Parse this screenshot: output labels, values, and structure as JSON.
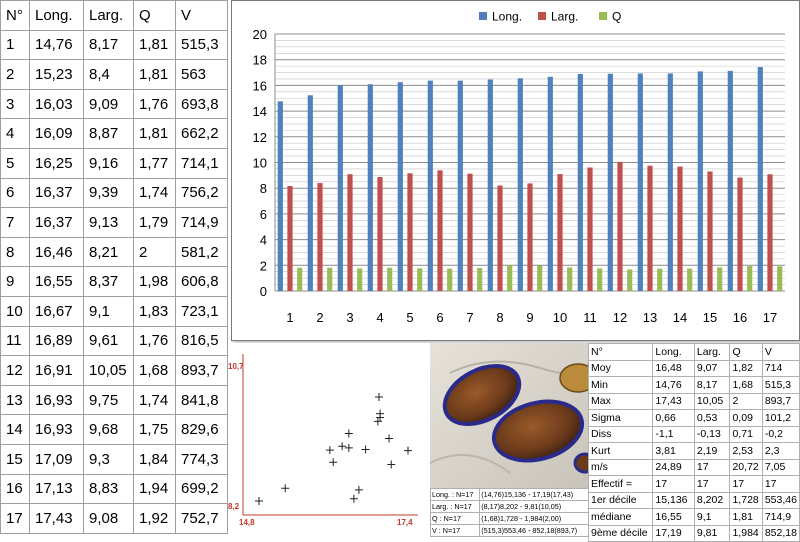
{
  "table": {
    "headers": [
      "N°",
      "Long.",
      "Larg.",
      "Q",
      "V"
    ],
    "rows": [
      [
        "1",
        "14,76",
        "8,17",
        "1,81",
        "515,3"
      ],
      [
        "2",
        "15,23",
        "8,4",
        "1,81",
        "563"
      ],
      [
        "3",
        "16,03",
        "9,09",
        "1,76",
        "693,8"
      ],
      [
        "4",
        "16,09",
        "8,87",
        "1,81",
        "662,2"
      ],
      [
        "5",
        "16,25",
        "9,16",
        "1,77",
        "714,1"
      ],
      [
        "6",
        "16,37",
        "9,39",
        "1,74",
        "756,2"
      ],
      [
        "7",
        "16,37",
        "9,13",
        "1,79",
        "714,9"
      ],
      [
        "8",
        "16,46",
        "8,21",
        "2",
        "581,2"
      ],
      [
        "9",
        "16,55",
        "8,37",
        "1,98",
        "606,8"
      ],
      [
        "10",
        "16,67",
        "9,1",
        "1,83",
        "723,1"
      ],
      [
        "11",
        "16,89",
        "9,61",
        "1,76",
        "816,5"
      ],
      [
        "12",
        "16,91",
        "10,05",
        "1,68",
        "893,7"
      ],
      [
        "13",
        "16,93",
        "9,75",
        "1,74",
        "841,8"
      ],
      [
        "14",
        "16,93",
        "9,68",
        "1,75",
        "829,6"
      ],
      [
        "15",
        "17,09",
        "9,3",
        "1,84",
        "774,3"
      ],
      [
        "16",
        "17,13",
        "8,83",
        "1,94",
        "699,2"
      ],
      [
        "17",
        "17,43",
        "9,08",
        "1,92",
        "752,7"
      ]
    ]
  },
  "chart_data": [
    {
      "type": "bar",
      "categories": [
        "1",
        "2",
        "3",
        "4",
        "5",
        "6",
        "7",
        "8",
        "9",
        "10",
        "11",
        "12",
        "13",
        "14",
        "15",
        "16",
        "17"
      ],
      "series": [
        {
          "name": "Long.",
          "color": "#4f81bd",
          "values": [
            14.76,
            15.23,
            16.03,
            16.09,
            16.25,
            16.37,
            16.37,
            16.46,
            16.55,
            16.67,
            16.89,
            16.91,
            16.93,
            16.93,
            17.09,
            17.13,
            17.43
          ]
        },
        {
          "name": "Larg.",
          "color": "#c0504d",
          "values": [
            8.17,
            8.4,
            9.09,
            8.87,
            9.16,
            9.39,
            9.13,
            8.21,
            8.37,
            9.1,
            9.61,
            10.05,
            9.75,
            9.68,
            9.3,
            8.83,
            9.08
          ]
        },
        {
          "name": "Q",
          "color": "#9bbb59",
          "values": [
            1.81,
            1.81,
            1.76,
            1.81,
            1.77,
            1.74,
            1.79,
            2,
            1.98,
            1.83,
            1.76,
            1.68,
            1.74,
            1.75,
            1.84,
            1.94,
            1.92
          ]
        }
      ],
      "ylim": [
        0,
        20
      ],
      "yticks": [
        "0",
        "2",
        "4",
        "6",
        "8",
        "10",
        "12",
        "14",
        "16",
        "18",
        "20"
      ],
      "grid": true,
      "legend": "top"
    },
    {
      "type": "scatter",
      "x": [
        14.76,
        15.23,
        16.03,
        16.09,
        16.25,
        16.37,
        16.37,
        16.46,
        16.55,
        16.67,
        16.89,
        16.91,
        16.93,
        16.93,
        17.09,
        17.13,
        17.43
      ],
      "y": [
        8.17,
        8.4,
        9.09,
        8.87,
        9.16,
        9.39,
        9.13,
        8.21,
        8.37,
        9.1,
        9.61,
        10.05,
        9.75,
        9.68,
        9.3,
        8.83,
        9.08
      ],
      "xlim": [
        14.76,
        17.43
      ],
      "ylim": [
        8.17,
        10.7
      ],
      "labels": {
        "ymax": "10,7",
        "ymin": "8,2",
        "xmin": "14,8",
        "xmax": "17,4"
      },
      "color": "#c0392b"
    }
  ],
  "summary": [
    [
      "Long. : N=17",
      "(14,76)15,136 - 17,19(17,43)"
    ],
    [
      "Larg. : N=17",
      "(8,17)8,202 - 9,81(10,05)"
    ],
    [
      "Q : N=17",
      "(1,68)1,728 - 1,984(2,00)"
    ],
    [
      "V : N=17",
      "(515,3)553,46 - 852,18(893,7)"
    ]
  ],
  "stats": {
    "headers": [
      "N°",
      "Long.",
      "Larg.",
      "Q",
      "V"
    ],
    "rows": [
      [
        "Moy",
        "16,48",
        "9,07",
        "1,82",
        "714"
      ],
      [
        "Min",
        "14,76",
        "8,17",
        "1,68",
        "515,3"
      ],
      [
        "Max",
        "17,43",
        "10,05",
        "2",
        "893,7"
      ],
      [
        "Sigma",
        "0,66",
        "0,53",
        "0,09",
        "101,2"
      ],
      [
        "Diss",
        "-1,1",
        "-0,13",
        "0,71",
        "-0,2"
      ],
      [
        "Kurt",
        "3,81",
        "2,19",
        "2,53",
        "2,3"
      ],
      [
        "m/s",
        "24,89",
        "17",
        "20,72",
        "7,05"
      ],
      [
        "Effectif =",
        "17",
        "17",
        "17",
        "17"
      ],
      [
        "1er décile",
        "15,136",
        "8,202",
        "1,728",
        "553,46"
      ],
      [
        "médiane",
        "16,55",
        "9,1",
        "1,81",
        "714,9"
      ],
      [
        "9ème décile",
        "17,19",
        "9,81",
        "1,984",
        "852,18"
      ]
    ]
  }
}
